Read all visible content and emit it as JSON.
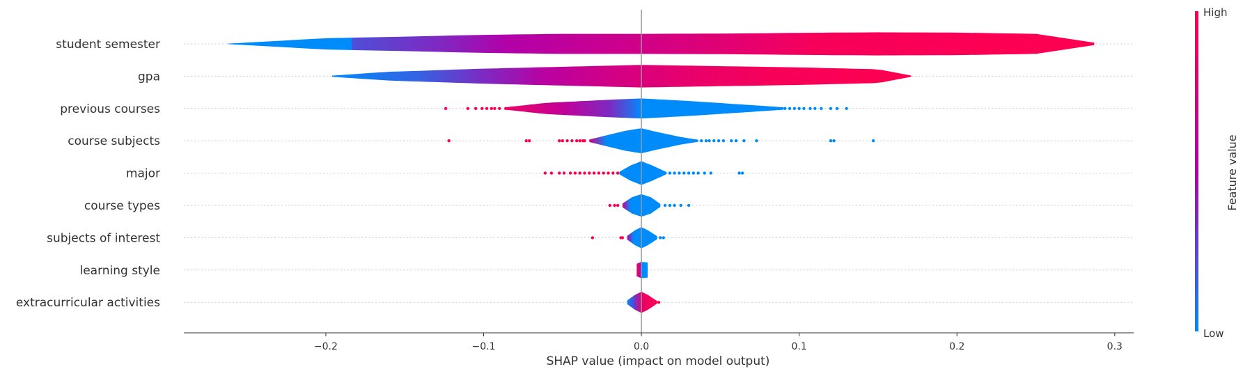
{
  "chart_data": {
    "type": "violin",
    "xlabel": "SHAP value (impact on model output)",
    "xlim": [
      -0.29,
      0.312
    ],
    "x_ticks": [
      -0.2,
      -0.1,
      0.0,
      0.1,
      0.2,
      0.3
    ],
    "x_tick_labels": [
      "−0.2",
      "−0.1",
      "0.0",
      "0.1",
      "0.2",
      "0.3"
    ],
    "colorbar": {
      "label": "Feature value",
      "high_label": "High",
      "low_label": "Low",
      "low_color": "#008bfb",
      "high_color": "#ff0051",
      "mid_color": "#b300a9"
    },
    "features": [
      {
        "name": "student semester",
        "range": [
          -0.262,
          0.287
        ],
        "profile": [
          [
            -0.262,
            0.02
          ],
          [
            -0.2,
            0.45
          ],
          [
            -0.15,
            0.58
          ],
          [
            -0.1,
            0.72
          ],
          [
            -0.05,
            0.8
          ],
          [
            0.0,
            0.8
          ],
          [
            0.05,
            0.82
          ],
          [
            0.1,
            0.88
          ],
          [
            0.15,
            0.92
          ],
          [
            0.2,
            0.9
          ],
          [
            0.25,
            0.8
          ],
          [
            0.287,
            0.1
          ]
        ],
        "colors": [
          [
            -0.262,
            0.0
          ],
          [
            -0.184,
            0.0
          ],
          [
            -0.183,
            0.22
          ],
          [
            -0.15,
            0.3
          ],
          [
            -0.12,
            0.38
          ],
          [
            -0.085,
            0.5
          ],
          [
            -0.05,
            0.58
          ],
          [
            -0.02,
            0.65
          ],
          [
            0.015,
            0.72
          ],
          [
            0.05,
            0.8
          ],
          [
            0.08,
            0.87
          ],
          [
            0.11,
            0.95
          ],
          [
            0.287,
            1.0
          ]
        ]
      },
      {
        "name": "gpa",
        "range": [
          -0.196,
          0.171
        ],
        "profile": [
          [
            -0.196,
            0.05
          ],
          [
            -0.16,
            0.35
          ],
          [
            -0.1,
            0.6
          ],
          [
            -0.05,
            0.75
          ],
          [
            0.0,
            0.9
          ],
          [
            0.05,
            0.8
          ],
          [
            0.1,
            0.7
          ],
          [
            0.15,
            0.55
          ],
          [
            0.171,
            0.05
          ]
        ],
        "colors": [
          [
            -0.196,
            0.0
          ],
          [
            -0.14,
            0.15
          ],
          [
            -0.1,
            0.35
          ],
          [
            -0.06,
            0.55
          ],
          [
            -0.02,
            0.7
          ],
          [
            0.03,
            0.85
          ],
          [
            0.08,
            0.95
          ],
          [
            0.171,
            1.0
          ]
        ]
      },
      {
        "name": "previous courses",
        "range": [
          -0.086,
          0.09
        ],
        "profile": [
          [
            -0.086,
            0.1
          ],
          [
            -0.06,
            0.45
          ],
          [
            -0.02,
            0.7
          ],
          [
            0.0,
            0.8
          ],
          [
            0.03,
            0.6
          ],
          [
            0.06,
            0.35
          ],
          [
            0.09,
            0.1
          ]
        ],
        "colors": [
          [
            -0.086,
            0.88
          ],
          [
            -0.05,
            0.6
          ],
          [
            -0.02,
            0.35
          ],
          [
            -0.006,
            0.12
          ],
          [
            0.0,
            0.0
          ],
          [
            0.09,
            0.0
          ]
        ],
        "dots_high": [
          -0.124,
          -0.11,
          -0.105,
          -0.101,
          -0.098,
          -0.095,
          -0.093,
          -0.09,
          -0.086
        ],
        "dots_low": [
          0.091,
          0.094,
          0.097,
          0.1,
          0.103,
          0.107,
          0.11,
          0.114,
          0.12,
          0.124,
          0.13
        ]
      },
      {
        "name": "course subjects",
        "range": [
          -0.033,
          0.036
        ],
        "profile": [
          [
            -0.033,
            0.1
          ],
          [
            -0.02,
            0.5
          ],
          [
            -0.01,
            0.8
          ],
          [
            0.0,
            1.0
          ],
          [
            0.01,
            0.7
          ],
          [
            0.025,
            0.3
          ],
          [
            0.036,
            0.08
          ]
        ],
        "colors": [
          [
            -0.033,
            0.7
          ],
          [
            -0.022,
            0.0
          ],
          [
            0.036,
            0.0
          ]
        ],
        "dots_high": [
          -0.122,
          -0.073,
          -0.071,
          -0.052,
          -0.05,
          -0.047,
          -0.044,
          -0.041,
          -0.039,
          -0.037,
          -0.036
        ],
        "dots_low": [
          0.038,
          0.041,
          0.043,
          0.046,
          0.049,
          0.052,
          0.057,
          0.06,
          0.065,
          0.073,
          0.12,
          0.122,
          0.147
        ]
      },
      {
        "name": "major",
        "range": [
          -0.014,
          0.016
        ],
        "profile": [
          [
            -0.014,
            0.1
          ],
          [
            -0.007,
            0.6
          ],
          [
            0.0,
            0.95
          ],
          [
            0.007,
            0.6
          ],
          [
            0.016,
            0.08
          ]
        ],
        "colors": [
          [
            -0.014,
            0.0
          ],
          [
            0.016,
            0.0
          ]
        ],
        "dots_high": [
          -0.061,
          -0.057,
          -0.052,
          -0.049,
          -0.045,
          -0.042,
          -0.039,
          -0.036,
          -0.033,
          -0.03,
          -0.027,
          -0.024,
          -0.021,
          -0.018,
          -0.015
        ],
        "dots_low": [
          0.018,
          0.021,
          0.024,
          0.027,
          0.03,
          0.033,
          0.036,
          0.04,
          0.044,
          0.062,
          0.064
        ]
      },
      {
        "name": "course types",
        "range": [
          -0.012,
          0.012
        ],
        "profile": [
          [
            -0.012,
            0.15
          ],
          [
            -0.006,
            0.65
          ],
          [
            0.0,
            0.9
          ],
          [
            0.006,
            0.65
          ],
          [
            0.012,
            0.12
          ]
        ],
        "colors": [
          [
            -0.012,
            0.6
          ],
          [
            -0.007,
            0.0
          ],
          [
            0.012,
            0.0
          ]
        ],
        "dots_high": [
          -0.02,
          -0.017,
          -0.015
        ],
        "dots_low": [
          0.015,
          0.018,
          0.021,
          0.025,
          0.03
        ]
      },
      {
        "name": "subjects of interest",
        "range": [
          -0.009,
          0.01
        ],
        "profile": [
          [
            -0.009,
            0.15
          ],
          [
            -0.004,
            0.6
          ],
          [
            0.0,
            0.85
          ],
          [
            0.004,
            0.6
          ],
          [
            0.01,
            0.12
          ]
        ],
        "colors": [
          [
            -0.009,
            0.5
          ],
          [
            -0.005,
            0.0
          ],
          [
            0.01,
            0.0
          ]
        ],
        "dots_high": [
          -0.031,
          -0.013,
          -0.012
        ],
        "dots_low": [
          0.012,
          0.014
        ]
      },
      {
        "name": "learning style",
        "range": [
          -0.003,
          0.004
        ],
        "profile": [
          [
            -0.003,
            0.5
          ],
          [
            0.0,
            0.65
          ],
          [
            0.004,
            0.6
          ]
        ],
        "colors": [
          [
            -0.003,
            1.0
          ],
          [
            -0.0005,
            0.45
          ],
          [
            0.0005,
            0.0
          ],
          [
            0.004,
            0.0
          ]
        ]
      },
      {
        "name": "extracurricular activities",
        "range": [
          -0.009,
          0.01
        ],
        "profile": [
          [
            -0.009,
            0.15
          ],
          [
            -0.004,
            0.6
          ],
          [
            0.0,
            0.85
          ],
          [
            0.004,
            0.6
          ],
          [
            0.01,
            0.1
          ]
        ],
        "colors": [
          [
            -0.009,
            0.0
          ],
          [
            -0.004,
            0.3
          ],
          [
            0.0,
            0.85
          ],
          [
            0.01,
            1.0
          ]
        ],
        "dots_high": [
          0.011
        ]
      }
    ]
  }
}
